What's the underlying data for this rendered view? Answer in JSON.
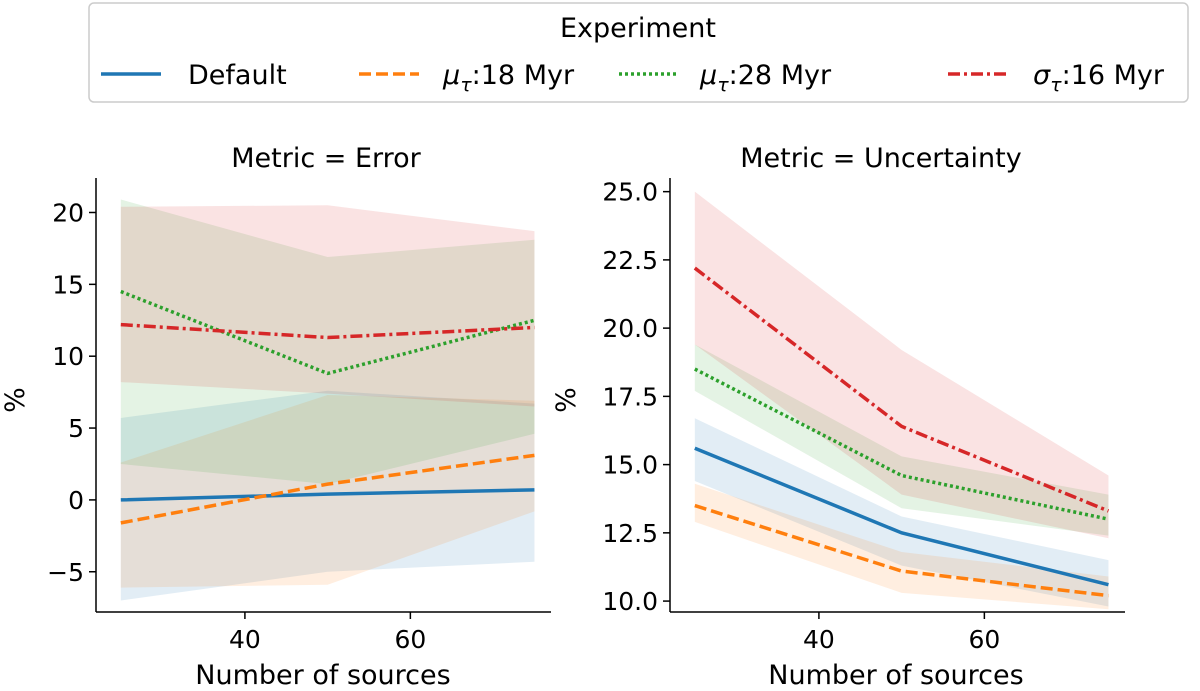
{
  "legend": {
    "title": "Experiment",
    "placement": "top-center",
    "entries": [
      {
        "label": "Default",
        "series": "Default"
      },
      {
        "label": "18 Myr",
        "series": "mu18"
      },
      {
        "label": "28 Myr",
        "series": "mu28"
      },
      {
        "label": "16 Myr",
        "series": "sigma16"
      }
    ]
  },
  "series_styles": {
    "Default": {
      "color": "#1f77b4",
      "dash": "solid",
      "symbol": "",
      "sub": ""
    },
    "mu18": {
      "color": "#ff7f0e",
      "dash": "dashed",
      "symbol": "μ",
      "sub": "τ"
    },
    "mu28": {
      "color": "#2ca02c",
      "dash": "dotted",
      "symbol": "μ",
      "sub": "τ"
    },
    "sigma16": {
      "color": "#d62728",
      "dash": "dashdot",
      "symbol": "σ",
      "sub": "τ"
    }
  },
  "chart_data": [
    {
      "type": "line",
      "title": "Metric = Error",
      "xlabel": "Number of sources",
      "ylabel": "%",
      "xlim": [
        22,
        77
      ],
      "ylim": [
        -7.8,
        22.4
      ],
      "xticks": [
        40,
        60
      ],
      "yticks": [
        -5,
        0,
        5,
        10,
        15,
        20
      ],
      "ytick_labels": [
        "−5",
        "0",
        "5",
        "10",
        "15",
        "20"
      ],
      "x": [
        25,
        50,
        75
      ],
      "series": [
        {
          "name": "Default",
          "values": [
            0.0,
            0.4,
            0.7
          ],
          "lower": [
            -7.0,
            -5.0,
            -4.3
          ],
          "upper": [
            5.7,
            7.6,
            6.7
          ]
        },
        {
          "name": "mu18",
          "values": [
            -1.6,
            1.1,
            3.1
          ],
          "lower": [
            -6.1,
            -5.9,
            -0.8
          ],
          "upper": [
            2.6,
            7.3,
            6.9
          ]
        },
        {
          "name": "mu28",
          "values": [
            14.5,
            8.8,
            12.5
          ],
          "lower": [
            2.5,
            1.1,
            4.6
          ],
          "upper": [
            20.9,
            16.9,
            18.1
          ]
        },
        {
          "name": "sigma16",
          "values": [
            12.2,
            11.3,
            12.0
          ],
          "lower": [
            8.2,
            7.4,
            6.5
          ],
          "upper": [
            20.4,
            20.5,
            18.7
          ]
        }
      ]
    },
    {
      "type": "line",
      "title": "Metric = Uncertainty",
      "xlabel": "Number of sources",
      "ylabel": "%",
      "xlim": [
        22,
        77
      ],
      "ylim": [
        9.6,
        25.5
      ],
      "xticks": [
        40,
        60
      ],
      "yticks": [
        10.0,
        12.5,
        15.0,
        17.5,
        20.0,
        22.5,
        25.0
      ],
      "ytick_labels": [
        "10.0",
        "12.5",
        "15.0",
        "17.5",
        "20.0",
        "22.5",
        "25.0"
      ],
      "x": [
        25,
        50,
        75
      ],
      "series": [
        {
          "name": "Default",
          "values": [
            15.6,
            12.5,
            10.6
          ],
          "lower": [
            14.4,
            11.3,
            9.8
          ],
          "upper": [
            16.7,
            13.1,
            11.5
          ]
        },
        {
          "name": "mu18",
          "values": [
            13.5,
            11.1,
            10.2
          ],
          "lower": [
            12.9,
            10.3,
            9.7
          ],
          "upper": [
            14.3,
            11.8,
            10.9
          ]
        },
        {
          "name": "mu28",
          "values": [
            18.5,
            14.6,
            13.0
          ],
          "lower": [
            17.7,
            13.4,
            12.4
          ],
          "upper": [
            19.4,
            15.3,
            13.9
          ]
        },
        {
          "name": "sigma16",
          "values": [
            22.2,
            16.4,
            13.3
          ],
          "lower": [
            19.4,
            13.9,
            12.3
          ],
          "upper": [
            25.0,
            19.2,
            14.6
          ]
        }
      ]
    }
  ]
}
